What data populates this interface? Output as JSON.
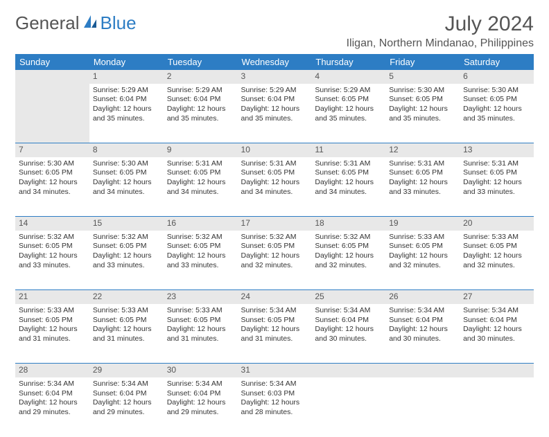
{
  "logo": {
    "general": "General",
    "blue": "Blue"
  },
  "title": "July 2024",
  "location": "Iligan, Northern Mindanao, Philippines",
  "header_bg": "#2d7dc4",
  "header_fg": "#ffffff",
  "daynum_bg": "#e8e8e8",
  "text_color": "#333333",
  "days": [
    "Sunday",
    "Monday",
    "Tuesday",
    "Wednesday",
    "Thursday",
    "Friday",
    "Saturday"
  ],
  "weeks": [
    [
      null,
      {
        "n": "1",
        "sr": "5:29 AM",
        "ss": "6:04 PM",
        "dl": "12 hours and 35 minutes."
      },
      {
        "n": "2",
        "sr": "5:29 AM",
        "ss": "6:04 PM",
        "dl": "12 hours and 35 minutes."
      },
      {
        "n": "3",
        "sr": "5:29 AM",
        "ss": "6:04 PM",
        "dl": "12 hours and 35 minutes."
      },
      {
        "n": "4",
        "sr": "5:29 AM",
        "ss": "6:05 PM",
        "dl": "12 hours and 35 minutes."
      },
      {
        "n": "5",
        "sr": "5:30 AM",
        "ss": "6:05 PM",
        "dl": "12 hours and 35 minutes."
      },
      {
        "n": "6",
        "sr": "5:30 AM",
        "ss": "6:05 PM",
        "dl": "12 hours and 35 minutes."
      }
    ],
    [
      {
        "n": "7",
        "sr": "5:30 AM",
        "ss": "6:05 PM",
        "dl": "12 hours and 34 minutes."
      },
      {
        "n": "8",
        "sr": "5:30 AM",
        "ss": "6:05 PM",
        "dl": "12 hours and 34 minutes."
      },
      {
        "n": "9",
        "sr": "5:31 AM",
        "ss": "6:05 PM",
        "dl": "12 hours and 34 minutes."
      },
      {
        "n": "10",
        "sr": "5:31 AM",
        "ss": "6:05 PM",
        "dl": "12 hours and 34 minutes."
      },
      {
        "n": "11",
        "sr": "5:31 AM",
        "ss": "6:05 PM",
        "dl": "12 hours and 34 minutes."
      },
      {
        "n": "12",
        "sr": "5:31 AM",
        "ss": "6:05 PM",
        "dl": "12 hours and 33 minutes."
      },
      {
        "n": "13",
        "sr": "5:31 AM",
        "ss": "6:05 PM",
        "dl": "12 hours and 33 minutes."
      }
    ],
    [
      {
        "n": "14",
        "sr": "5:32 AM",
        "ss": "6:05 PM",
        "dl": "12 hours and 33 minutes."
      },
      {
        "n": "15",
        "sr": "5:32 AM",
        "ss": "6:05 PM",
        "dl": "12 hours and 33 minutes."
      },
      {
        "n": "16",
        "sr": "5:32 AM",
        "ss": "6:05 PM",
        "dl": "12 hours and 33 minutes."
      },
      {
        "n": "17",
        "sr": "5:32 AM",
        "ss": "6:05 PM",
        "dl": "12 hours and 32 minutes."
      },
      {
        "n": "18",
        "sr": "5:32 AM",
        "ss": "6:05 PM",
        "dl": "12 hours and 32 minutes."
      },
      {
        "n": "19",
        "sr": "5:33 AM",
        "ss": "6:05 PM",
        "dl": "12 hours and 32 minutes."
      },
      {
        "n": "20",
        "sr": "5:33 AM",
        "ss": "6:05 PM",
        "dl": "12 hours and 32 minutes."
      }
    ],
    [
      {
        "n": "21",
        "sr": "5:33 AM",
        "ss": "6:05 PM",
        "dl": "12 hours and 31 minutes."
      },
      {
        "n": "22",
        "sr": "5:33 AM",
        "ss": "6:05 PM",
        "dl": "12 hours and 31 minutes."
      },
      {
        "n": "23",
        "sr": "5:33 AM",
        "ss": "6:05 PM",
        "dl": "12 hours and 31 minutes."
      },
      {
        "n": "24",
        "sr": "5:34 AM",
        "ss": "6:05 PM",
        "dl": "12 hours and 31 minutes."
      },
      {
        "n": "25",
        "sr": "5:34 AM",
        "ss": "6:04 PM",
        "dl": "12 hours and 30 minutes."
      },
      {
        "n": "26",
        "sr": "5:34 AM",
        "ss": "6:04 PM",
        "dl": "12 hours and 30 minutes."
      },
      {
        "n": "27",
        "sr": "5:34 AM",
        "ss": "6:04 PM",
        "dl": "12 hours and 30 minutes."
      }
    ],
    [
      {
        "n": "28",
        "sr": "5:34 AM",
        "ss": "6:04 PM",
        "dl": "12 hours and 29 minutes."
      },
      {
        "n": "29",
        "sr": "5:34 AM",
        "ss": "6:04 PM",
        "dl": "12 hours and 29 minutes."
      },
      {
        "n": "30",
        "sr": "5:34 AM",
        "ss": "6:04 PM",
        "dl": "12 hours and 29 minutes."
      },
      {
        "n": "31",
        "sr": "5:34 AM",
        "ss": "6:03 PM",
        "dl": "12 hours and 28 minutes."
      },
      null,
      null,
      null
    ]
  ],
  "labels": {
    "sunrise": "Sunrise: ",
    "sunset": "Sunset: ",
    "daylight": "Daylight: "
  }
}
